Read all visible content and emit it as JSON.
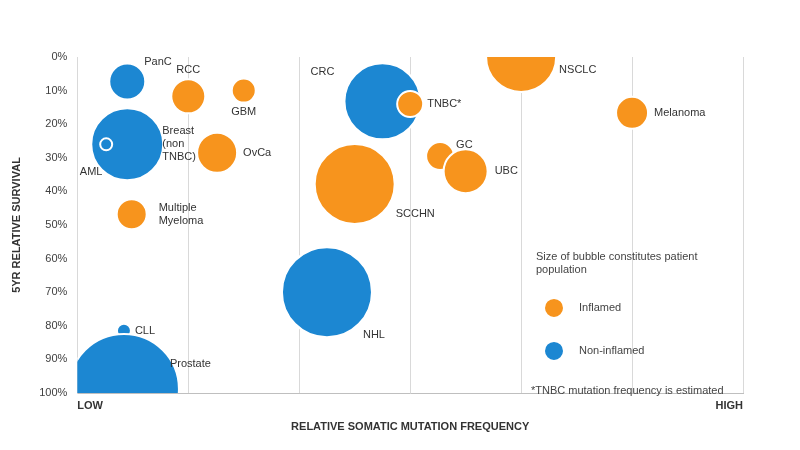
{
  "chart_data": {
    "type": "bubble",
    "x_label": "RELATIVE SOMATIC MUTATION FREQUENCY",
    "y_label": "5YR RELATIVE SURVIVAL",
    "xlim": [
      0,
      6
    ],
    "xticks": [
      {
        "value": 0,
        "label": "LOW"
      },
      {
        "value": 1,
        "label": null
      },
      {
        "value": 2,
        "label": null
      },
      {
        "value": 3,
        "label": null
      },
      {
        "value": 4,
        "label": null
      },
      {
        "value": 5,
        "label": null
      },
      {
        "value": 6,
        "label": "HIGH"
      }
    ],
    "ylim": [
      100,
      0
    ],
    "yticks": [
      {
        "value": 0,
        "label": "0%"
      },
      {
        "value": 10,
        "label": "10%"
      },
      {
        "value": 20,
        "label": "20%"
      },
      {
        "value": 30,
        "label": "30%"
      },
      {
        "value": 40,
        "label": "40%"
      },
      {
        "value": 50,
        "label": "50%"
      },
      {
        "value": 60,
        "label": "60%"
      },
      {
        "value": 70,
        "label": "70%"
      },
      {
        "value": 80,
        "label": "80%"
      },
      {
        "value": 90,
        "label": "90%"
      },
      {
        "value": 100,
        "label": "100%"
      }
    ],
    "grid": "x",
    "legend": "right",
    "legend_title": "Size of bubble constitutes patient population",
    "footnote": "*TNBC mutation frequency is estimated",
    "series": [
      {
        "name": "Inflamed",
        "color": "#F7941D",
        "labels": [
          "NSCLC",
          "RCC",
          "GBM",
          "TNBC*",
          "Melanoma",
          "OvCa",
          "GC",
          "UBC",
          "SCCHN",
          [
            "Multiple",
            "Myeloma"
          ]
        ],
        "x": [
          4.0,
          1.0,
          1.5,
          3.0,
          5.0,
          1.26,
          3.27,
          3.5,
          2.5,
          0.49
        ],
        "values": [
          0,
          11.7,
          10,
          14,
          16.6,
          28.5,
          29.5,
          34,
          37.8,
          46.8
        ],
        "sizes": [
          35,
          17,
          12,
          13,
          16,
          20,
          14,
          22,
          40,
          15
        ]
      },
      {
        "name": "Non-inflamed",
        "color": "#1C87D2",
        "labels": [
          "PanC",
          "CRC",
          [
            "Breast",
            "(non",
            "TNBC)"
          ],
          "AML",
          "NHL",
          "CLL",
          "Prostate"
        ],
        "x": [
          0.45,
          2.75,
          0.45,
          0.26,
          2.25,
          0.42,
          0.42
        ],
        "values": [
          7.3,
          13.2,
          26,
          26,
          70,
          81.5,
          98.8
        ],
        "sizes": [
          18,
          38,
          36,
          6,
          45,
          7,
          55
        ]
      }
    ]
  }
}
